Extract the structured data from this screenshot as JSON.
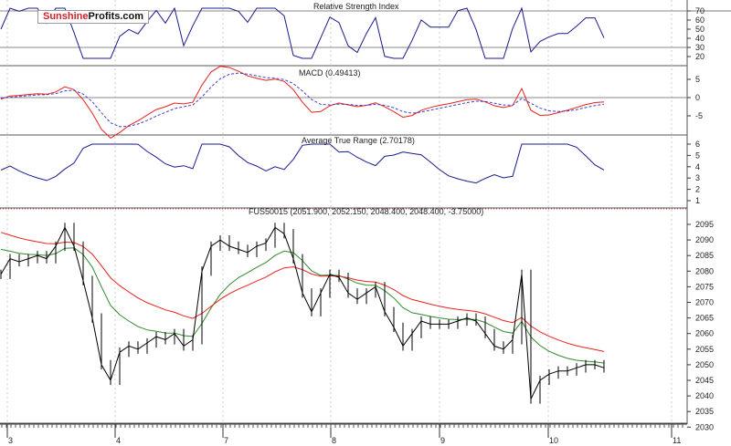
{
  "logo": {
    "part1": "Sunshine",
    "part2": "Profits.com"
  },
  "panels": {
    "rsi": {
      "title": "Relative Strength Index",
      "ticks": [
        70,
        60,
        50,
        40,
        30,
        20
      ],
      "bands": [
        30,
        70
      ]
    },
    "macd": {
      "title": "MACD (0.49413)",
      "ticks": [
        5,
        0,
        -5
      ]
    },
    "atr": {
      "title": "Average True Range (2.70178)",
      "ticks": [
        6,
        5,
        4,
        3,
        2,
        1
      ]
    },
    "price": {
      "title": "FUS50015 (2051.900, 2052.150, 2048.400, 2048.400, -3.75000)",
      "ticks": [
        2095,
        2090,
        2085,
        2080,
        2075,
        2070,
        2065,
        2060,
        2055,
        2050,
        2045,
        2040,
        2035,
        2030
      ]
    }
  },
  "chart_data": {
    "type": "line",
    "x_tick_labels": [
      "3",
      "4",
      "7",
      "8",
      "9",
      "10",
      "11"
    ],
    "ylim": [
      2030,
      2097
    ],
    "series": [
      {
        "values": [
          2079,
          2084,
          2083,
          2084,
          2085,
          2084,
          2088,
          2094,
          2088,
          2077,
          2065,
          2050,
          2045,
          2054,
          2056,
          2055,
          2057,
          2059,
          2058,
          2060,
          2056,
          2058,
          2080,
          2088,
          2090,
          2088,
          2087,
          2086,
          2088,
          2089,
          2094,
          2092,
          2084,
          2073,
          2067,
          2073,
          2079,
          2078,
          2073,
          2071,
          2073,
          2075,
          2067,
          2062,
          2056,
          2060,
          2064,
          2063,
          2063,
          2063,
          2064,
          2065,
          2064,
          2060,
          2056,
          2055,
          2058,
          2079,
          2039,
          2045,
          2047,
          2048,
          2048,
          2049,
          2050,
          2050,
          2049
        ]
      }
    ],
    "colors": {
      "price": "#000000",
      "fast_ma": "#2e8b2e",
      "slow_ma": "#e8201a",
      "indicator": "#1a1a8c",
      "signal": "#4040d0"
    }
  }
}
